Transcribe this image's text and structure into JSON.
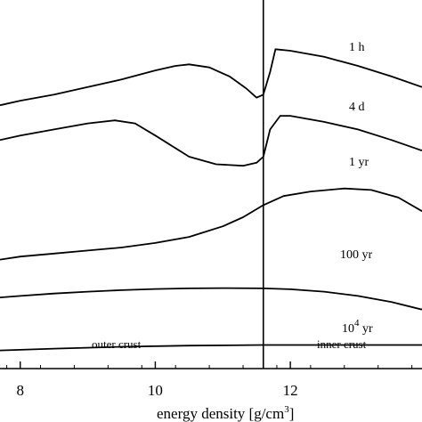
{
  "chart_data": {
    "type": "line",
    "xlabel": "energy density [g/cm3]",
    "xlabel_parts": {
      "main": "energy density [g/cm",
      "sup": "3",
      "close": "]"
    },
    "xlim": [
      7.7,
      13.95
    ],
    "xticks": [
      8,
      10,
      12
    ],
    "x_tick_labels": [
      "8",
      "10",
      "12"
    ],
    "boundary_x": 11.6,
    "regions": [
      {
        "name": "outer_crust",
        "label": "outer crust"
      },
      {
        "name": "inner_crust",
        "label": "inner crust"
      }
    ],
    "series": [
      {
        "name": "1 h",
        "label": "1 h",
        "x": [
          7.7,
          8.0,
          8.5,
          9.0,
          9.5,
          10.0,
          10.3,
          10.5,
          10.8,
          11.1,
          11.35,
          11.5,
          11.6,
          11.7,
          11.78,
          12.0,
          12.5,
          13.0,
          13.5,
          13.95
        ],
        "y": [
          0.87,
          0.885,
          0.905,
          0.93,
          0.955,
          0.985,
          1.0,
          1.005,
          0.995,
          0.965,
          0.925,
          0.895,
          0.905,
          0.98,
          1.055,
          1.05,
          1.03,
          1.0,
          0.965,
          0.93
        ]
      },
      {
        "name": "4 d",
        "label": "4 d",
        "x": [
          7.7,
          8.0,
          8.5,
          9.0,
          9.4,
          9.7,
          10.0,
          10.5,
          10.9,
          11.3,
          11.5,
          11.6,
          11.7,
          11.85,
          12.0,
          12.5,
          13.0,
          13.5,
          13.95
        ],
        "y": [
          0.755,
          0.77,
          0.79,
          0.81,
          0.82,
          0.81,
          0.77,
          0.7,
          0.675,
          0.67,
          0.68,
          0.7,
          0.79,
          0.835,
          0.835,
          0.815,
          0.79,
          0.755,
          0.72
        ]
      },
      {
        "name": "1 yr",
        "label": "1 yr",
        "x": [
          7.7,
          8.0,
          8.5,
          9.0,
          9.5,
          10.0,
          10.5,
          11.0,
          11.3,
          11.6,
          11.9,
          12.3,
          12.8,
          13.2,
          13.6,
          13.95
        ],
        "y": [
          0.36,
          0.37,
          0.38,
          0.39,
          0.4,
          0.415,
          0.435,
          0.47,
          0.5,
          0.54,
          0.57,
          0.585,
          0.595,
          0.59,
          0.565,
          0.52
        ]
      },
      {
        "name": "100 yr",
        "label": "100 yr",
        "x": [
          7.7,
          8.0,
          8.5,
          9.0,
          9.5,
          10.0,
          10.5,
          11.0,
          11.6,
          12.0,
          12.5,
          13.0,
          13.5,
          13.95
        ],
        "y": [
          0.235,
          0.24,
          0.248,
          0.254,
          0.259,
          0.263,
          0.265,
          0.266,
          0.265,
          0.262,
          0.254,
          0.24,
          0.22,
          0.195
        ]
      },
      {
        "name": "10^4 yr",
        "label_main": "10",
        "label_sup": "4",
        "label_rest": " yr",
        "x": [
          7.7,
          8.5,
          9.5,
          10.5,
          11.6,
          12.5,
          13.95
        ],
        "y": [
          0.06,
          0.066,
          0.072,
          0.076,
          0.078,
          0.078,
          0.078
        ]
      }
    ]
  }
}
